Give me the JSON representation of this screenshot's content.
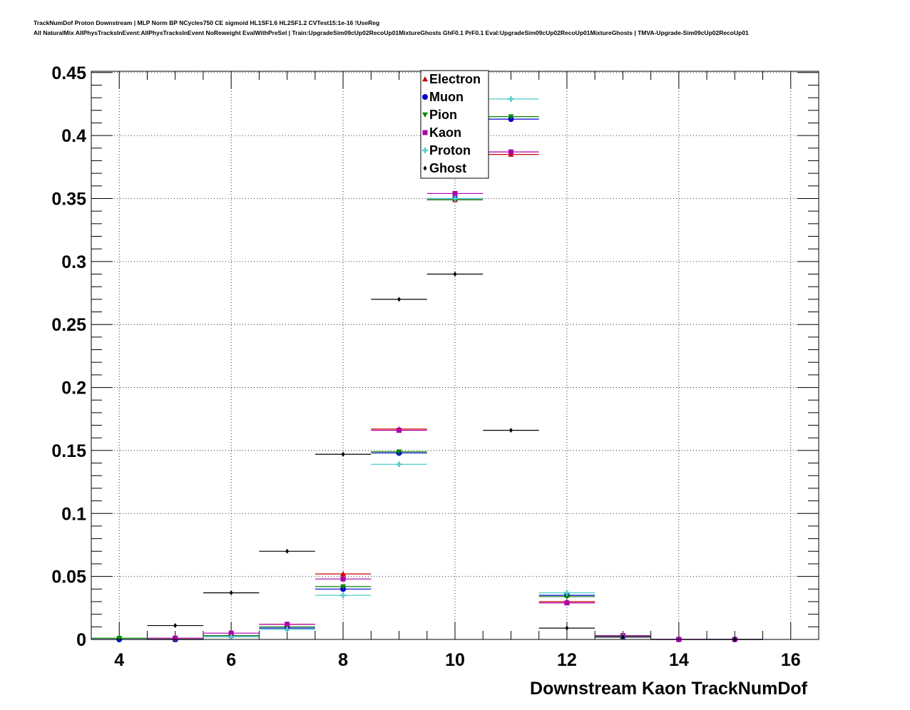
{
  "header": {
    "title_line1": "TrackNumDof Proton Downstream | MLP Norm BP NCycles750 CE sigmoid HL1SF1.6 HL2SF1.2 CVTest15:1e-16 !UseReg",
    "title_line2": "All NaturalMix AllPhysTracksInEvent:AllPhysTracksInEvent NoReweight EvalWithPreSel | Train:UpgradeSim09cUp02RecoUp01MixtureGhosts GhF0.1 PrF0.1 Eval:UpgradeSim09cUp02RecoUp01MixtureGhosts | TMVA-Upgrade-Sim09cUp02RecoUp01"
  },
  "chart_data": {
    "type": "scatter",
    "xlabel": "Downstream Kaon TrackNumDof",
    "ylabel": "",
    "xlim": [
      3.5,
      16.5
    ],
    "ylim": [
      0,
      0.451
    ],
    "xticks": [
      4,
      6,
      8,
      10,
      12,
      14,
      16
    ],
    "yticks": [
      0,
      0.05,
      0.1,
      0.15,
      0.2,
      0.25,
      0.3,
      0.35,
      0.4,
      0.45
    ],
    "ytick_labels": [
      "0",
      "0.05",
      "0.1",
      "0.15",
      "0.2",
      "0.25",
      "0.3",
      "0.35",
      "0.4",
      "0.45"
    ],
    "grid": true,
    "legend_position": "top-center",
    "series": [
      {
        "name": "Electron",
        "color": "#cc0000",
        "marker": "triangle-up",
        "x": [
          5,
          6,
          7,
          8,
          9,
          10,
          11,
          12,
          13,
          14
        ],
        "y": [
          0.0,
          0.003,
          0.012,
          0.052,
          0.167,
          0.349,
          0.385,
          0.03,
          0.003,
          0.0
        ]
      },
      {
        "name": "Muon",
        "color": "#0000cc",
        "marker": "circle",
        "x": [
          4,
          5,
          6,
          7,
          8,
          9,
          10,
          11,
          12,
          13,
          14,
          15
        ],
        "y": [
          0.0,
          0.0,
          0.003,
          0.009,
          0.04,
          0.148,
          0.35,
          0.413,
          0.035,
          0.002,
          0.0,
          0.0
        ]
      },
      {
        "name": "Pion",
        "color": "#008800",
        "marker": "triangle-down",
        "x": [
          4,
          5,
          6,
          7,
          8,
          9,
          10,
          11,
          12,
          13,
          14,
          15
        ],
        "y": [
          0.001,
          0.0,
          0.003,
          0.01,
          0.042,
          0.149,
          0.349,
          0.415,
          0.034,
          0.003,
          0.0,
          0.0
        ]
      },
      {
        "name": "Kaon",
        "color": "#aa00aa",
        "marker": "square",
        "x": [
          5,
          6,
          7,
          8,
          9,
          10,
          11,
          12,
          13,
          14,
          15
        ],
        "y": [
          0.001,
          0.005,
          0.012,
          0.048,
          0.166,
          0.354,
          0.387,
          0.029,
          0.003,
          0.0,
          0.0
        ]
      },
      {
        "name": "Proton",
        "color": "#55cccc",
        "marker": "plus",
        "x": [
          6,
          7,
          8,
          9,
          10,
          11,
          12,
          13
        ],
        "y": [
          0.002,
          0.008,
          0.035,
          0.139,
          0.35,
          0.429,
          0.037,
          0.002
        ]
      },
      {
        "name": "Ghost",
        "color": "#000000",
        "marker": "diamond",
        "x": [
          5,
          6,
          7,
          8,
          9,
          10,
          11,
          12,
          13,
          15
        ],
        "y": [
          0.011,
          0.037,
          0.07,
          0.147,
          0.27,
          0.29,
          0.166,
          0.009,
          0.002,
          0.0
        ]
      }
    ]
  }
}
